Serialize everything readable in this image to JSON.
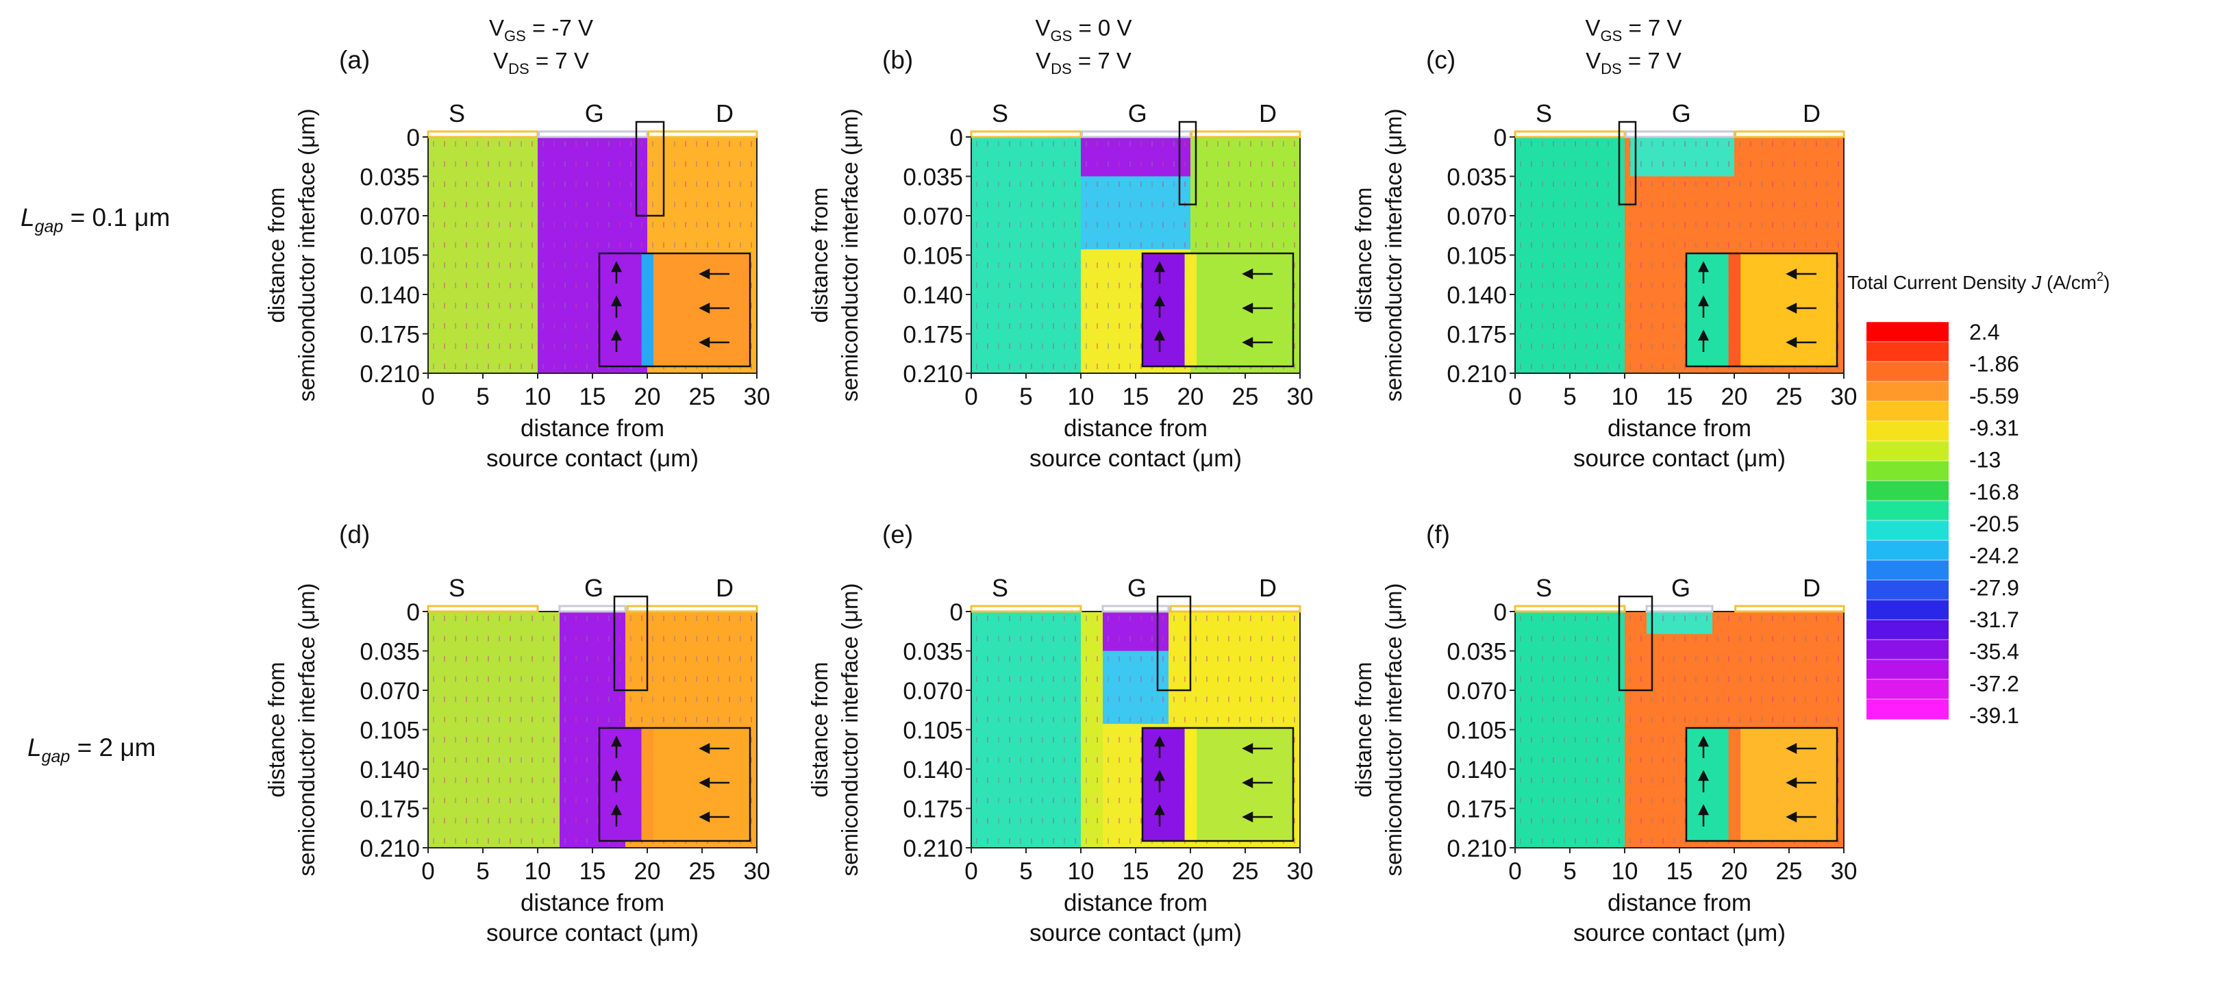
{
  "figure": {
    "row_labels": [
      {
        "prefix": "L",
        "sub": "gap",
        "suffix": " = 0.1 μm"
      },
      {
        "prefix": "L",
        "sub": "gap",
        "suffix": " = 2 μm"
      }
    ],
    "column_headers": [
      {
        "vgs": " = -7 V",
        "vds": " = 7 V"
      },
      {
        "vgs": " = 0 V",
        "vds": " = 7 V"
      },
      {
        "vgs": " = 7 V",
        "vds": " = 7 V"
      }
    ],
    "vgs_base": "V",
    "vgs_sub": "GS",
    "vds_base": "V",
    "vds_sub": "DS",
    "electrode_labels": [
      "S",
      "G",
      "D"
    ]
  },
  "colorbar": {
    "title_main": "Total Current Density ",
    "title_var": "J",
    "title_unit": " (A/cm",
    "title_sup": "2",
    "title_end": ")",
    "ticks": [
      "2.4",
      "-1.86",
      "-5.59",
      "-9.31",
      "-13",
      "-16.8",
      "-20.5",
      "-24.2",
      "-27.9",
      "-31.7",
      "-35.4",
      "-37.2",
      "-39.1"
    ],
    "colors": [
      "#ff0000",
      "#ff3a12",
      "#ff6f22",
      "#ff9a2a",
      "#ffc21e",
      "#f6e21c",
      "#c8ee22",
      "#7ee62c",
      "#2fd84c",
      "#1ee49a",
      "#1fe0d4",
      "#22b8f4",
      "#2284f4",
      "#2852f0",
      "#2a28e6",
      "#5a12e6",
      "#8c10e8",
      "#b812ec",
      "#de18f0",
      "#ff1cff"
    ]
  },
  "chart_data": [
    {
      "panel": "(a)",
      "type": "heatmap",
      "xlabel_line1": "distance from",
      "xlabel_line2": "source contact (μm)",
      "ylabel_line1": "distance from",
      "ylabel_line2": "semiconductor interface (μm)",
      "xticks": [
        "0",
        "5",
        "10",
        "15",
        "20",
        "25",
        "30"
      ],
      "yticks": [
        "0",
        "0.035",
        "0.070",
        "0.105",
        "0.140",
        "0.175",
        "0.210"
      ],
      "xlim": [
        0,
        30
      ],
      "ylim": [
        0,
        0.21
      ],
      "regions": [
        {
          "x": [
            0,
            10
          ],
          "y": [
            0,
            0.21
          ],
          "color": "#b8e23c"
        },
        {
          "x": [
            10,
            20
          ],
          "y": [
            0,
            0.21
          ],
          "color": "#a01ee8"
        },
        {
          "x": [
            20,
            30
          ],
          "y": [
            0,
            0.21
          ],
          "color": "#ffb22a"
        }
      ],
      "electrodes": {
        "S": [
          0,
          10
        ],
        "G": [
          10.1,
          20
        ],
        "D": [
          20.1,
          30
        ]
      },
      "highlight": {
        "x": [
          19,
          21.5
        ],
        "y": [
          0,
          0.07
        ]
      },
      "inset": {
        "cols": [
          "#a01ee8",
          "#2aa8f4",
          "#ff9a2a"
        ]
      }
    },
    {
      "panel": "(b)",
      "type": "heatmap",
      "xlabel_line1": "distance from",
      "xlabel_line2": "source contact (μm)",
      "ylabel_line1": "distance from",
      "ylabel_line2": "semiconductor interface (μm)",
      "xticks": [
        "0",
        "5",
        "10",
        "15",
        "20",
        "25",
        "30"
      ],
      "yticks": [
        "0",
        "0.035",
        "0.070",
        "0.105",
        "0.140",
        "0.175",
        "0.210"
      ],
      "xlim": [
        0,
        30
      ],
      "ylim": [
        0,
        0.21
      ],
      "regions": [
        {
          "x": [
            0,
            10
          ],
          "y": [
            0,
            0.21
          ],
          "color": "#2fe3b4"
        },
        {
          "x": [
            10,
            20
          ],
          "y": [
            0,
            0.035
          ],
          "color": "#a01ee8"
        },
        {
          "x": [
            10,
            20
          ],
          "y": [
            0.035,
            0.1
          ],
          "color": "#3cc8f0"
        },
        {
          "x": [
            10,
            20
          ],
          "y": [
            0.1,
            0.21
          ],
          "color": "#f2ec2a"
        },
        {
          "x": [
            20,
            30
          ],
          "y": [
            0,
            0.21
          ],
          "color": "#a8e83a"
        }
      ],
      "electrodes": {
        "S": [
          0,
          10
        ],
        "G": [
          10.1,
          20
        ],
        "D": [
          20.1,
          30
        ]
      },
      "highlight": {
        "x": [
          19,
          20.5
        ],
        "y": [
          0,
          0.06
        ]
      },
      "inset": {
        "cols": [
          "#8a14e4",
          "#f2ec2a",
          "#a8e83a"
        ]
      }
    },
    {
      "panel": "(c)",
      "type": "heatmap",
      "xlabel_line1": "distance from",
      "xlabel_line2": "source contact (μm)",
      "ylabel_line1": "distance from",
      "ylabel_line2": "semiconductor interface (μm)",
      "xticks": [
        "0",
        "5",
        "10",
        "15",
        "20",
        "25",
        "30"
      ],
      "yticks": [
        "0",
        "0.035",
        "0.070",
        "0.105",
        "0.140",
        "0.175",
        "0.210"
      ],
      "xlim": [
        0,
        30
      ],
      "ylim": [
        0,
        0.21
      ],
      "regions": [
        {
          "x": [
            0,
            10
          ],
          "y": [
            0,
            0.21
          ],
          "color": "#22e0a4"
        },
        {
          "x": [
            10,
            30
          ],
          "y": [
            0,
            0.21
          ],
          "color": "#ff7a2a"
        },
        {
          "x": [
            10.5,
            20
          ],
          "y": [
            0,
            0.035
          ],
          "color": "#3ce4c0"
        }
      ],
      "electrodes": {
        "S": [
          0,
          10
        ],
        "G": [
          10.1,
          20
        ],
        "D": [
          20.1,
          30
        ]
      },
      "highlight": {
        "x": [
          9.5,
          11
        ],
        "y": [
          0,
          0.06
        ]
      },
      "inset": {
        "cols": [
          "#22e0a4",
          "#ff5a24",
          "#ffc21e"
        ]
      }
    },
    {
      "panel": "(d)",
      "type": "heatmap",
      "xlabel_line1": "distance from",
      "xlabel_line2": "source contact (μm)",
      "ylabel_line1": "distance from",
      "ylabel_line2": "semiconductor interface (μm)",
      "xticks": [
        "0",
        "5",
        "10",
        "15",
        "20",
        "25",
        "30"
      ],
      "yticks": [
        "0",
        "0.035",
        "0.070",
        "0.105",
        "0.140",
        "0.175",
        "0.210"
      ],
      "xlim": [
        0,
        30
      ],
      "ylim": [
        0,
        0.21
      ],
      "regions": [
        {
          "x": [
            0,
            12
          ],
          "y": [
            0,
            0.21
          ],
          "color": "#b8e23c"
        },
        {
          "x": [
            12,
            18
          ],
          "y": [
            0,
            0.21
          ],
          "color": "#a01ee8"
        },
        {
          "x": [
            18,
            30
          ],
          "y": [
            0,
            0.21
          ],
          "color": "#ffa828"
        }
      ],
      "electrodes": {
        "S": [
          0,
          10
        ],
        "G": [
          12,
          18
        ],
        "D": [
          18.2,
          30
        ]
      },
      "highlight": {
        "x": [
          17,
          20
        ],
        "y": [
          0,
          0.07
        ]
      },
      "inset": {
        "cols": [
          "#a01ee8",
          "#ff9a2a",
          "#ffa828"
        ]
      }
    },
    {
      "panel": "(e)",
      "type": "heatmap",
      "xlabel_line1": "distance from",
      "xlabel_line2": "source contact (μm)",
      "ylabel_line1": "distance from",
      "ylabel_line2": "semiconductor interface (μm)",
      "xticks": [
        "0",
        "5",
        "10",
        "15",
        "20",
        "25",
        "30"
      ],
      "yticks": [
        "0",
        "0.035",
        "0.070",
        "0.105",
        "0.140",
        "0.175",
        "0.210"
      ],
      "xlim": [
        0,
        30
      ],
      "ylim": [
        0,
        0.21
      ],
      "regions": [
        {
          "x": [
            0,
            10
          ],
          "y": [
            0,
            0.21
          ],
          "color": "#2fe3b4"
        },
        {
          "x": [
            10,
            12
          ],
          "y": [
            0,
            0.21
          ],
          "color": "#d8ee2c"
        },
        {
          "x": [
            12,
            18
          ],
          "y": [
            0,
            0.035
          ],
          "color": "#a01ee8"
        },
        {
          "x": [
            12,
            18
          ],
          "y": [
            0.035,
            0.1
          ],
          "color": "#3cc8f0"
        },
        {
          "x": [
            12,
            18
          ],
          "y": [
            0.1,
            0.21
          ],
          "color": "#f2ec2a"
        },
        {
          "x": [
            18,
            30
          ],
          "y": [
            0,
            0.21
          ],
          "color": "#f6ea24"
        }
      ],
      "electrodes": {
        "S": [
          0,
          10
        ],
        "G": [
          12,
          18
        ],
        "D": [
          18.2,
          30
        ]
      },
      "highlight": {
        "x": [
          17,
          20
        ],
        "y": [
          0,
          0.07
        ]
      },
      "inset": {
        "cols": [
          "#8a14e4",
          "#f6ee22",
          "#b8e83a"
        ]
      }
    },
    {
      "panel": "(f)",
      "type": "heatmap",
      "xlabel_line1": "distance from",
      "xlabel_line2": "source contact (μm)",
      "ylabel_line1": "distance from",
      "ylabel_line2": "semiconductor interface (μm)",
      "xticks": [
        "0",
        "5",
        "10",
        "15",
        "20",
        "25",
        "30"
      ],
      "yticks": [
        "0",
        "0.035",
        "0.070",
        "0.105",
        "0.140",
        "0.175",
        "0.210"
      ],
      "xlim": [
        0,
        30
      ],
      "ylim": [
        0,
        0.21
      ],
      "regions": [
        {
          "x": [
            0,
            10
          ],
          "y": [
            0,
            0.21
          ],
          "color": "#22e0a4"
        },
        {
          "x": [
            10,
            30
          ],
          "y": [
            0,
            0.21
          ],
          "color": "#ff7a2a"
        },
        {
          "x": [
            12,
            18
          ],
          "y": [
            0,
            0.02
          ],
          "color": "#3ce4c0"
        }
      ],
      "electrodes": {
        "S": [
          0,
          10
        ],
        "G": [
          12,
          18
        ],
        "D": [
          20.1,
          30
        ]
      },
      "highlight": {
        "x": [
          9.5,
          12.5
        ],
        "y": [
          0,
          0.07
        ]
      },
      "inset": {
        "cols": [
          "#22e0a4",
          "#ff7a2a",
          "#ffb82a"
        ]
      }
    }
  ]
}
